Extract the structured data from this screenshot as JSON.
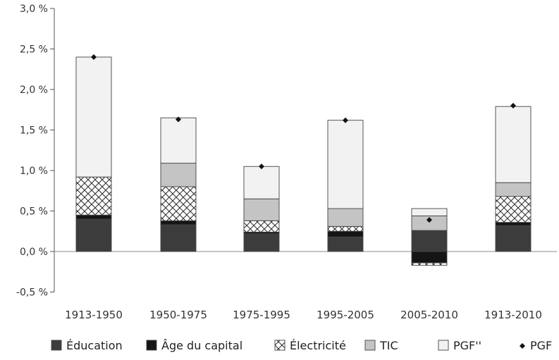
{
  "chart_data": {
    "type": "bar",
    "stacked": true,
    "categories": [
      "1913-1950",
      "1950-1975",
      "1975-1995",
      "1995-2005",
      "2005-2010",
      "1913-2010"
    ],
    "y_ticks": [
      "3,0 %",
      "2,5 %",
      "2,0 %",
      "1,5 %",
      "1,0 %",
      "0,5 %",
      "0,0 %",
      "-0,5 %"
    ],
    "ylim": [
      -0.5,
      3.0
    ],
    "grid": false,
    "legend_position": "bottom",
    "series": [
      {
        "name": "Éducation",
        "color": "#3c3c3c",
        "pattern": "solid",
        "values": [
          0.4,
          0.33,
          0.22,
          0.18,
          0.26,
          0.32
        ]
      },
      {
        "name": "Âge du capital",
        "color": "#151515",
        "pattern": "solid",
        "values": [
          0.05,
          0.05,
          0.02,
          0.07,
          -0.14,
          0.04
        ]
      },
      {
        "name": "Électricité",
        "color": "#ffffff",
        "pattern": "crosshatch",
        "values": [
          0.47,
          0.42,
          0.14,
          0.06,
          -0.03,
          0.32
        ]
      },
      {
        "name": "TIC",
        "color": "#c4c4c4",
        "pattern": "solid",
        "values": [
          0.0,
          0.29,
          0.27,
          0.22,
          0.18,
          0.17
        ]
      },
      {
        "name": "PGF''",
        "color": "#f2f2f2",
        "pattern": "solid",
        "values": [
          1.48,
          0.56,
          0.4,
          1.09,
          0.09,
          0.94
        ]
      }
    ],
    "markers": {
      "name": "PGF",
      "symbol": "diamond",
      "color": "#111111",
      "values": [
        2.4,
        1.63,
        1.05,
        1.62,
        0.39,
        1.8
      ]
    }
  }
}
